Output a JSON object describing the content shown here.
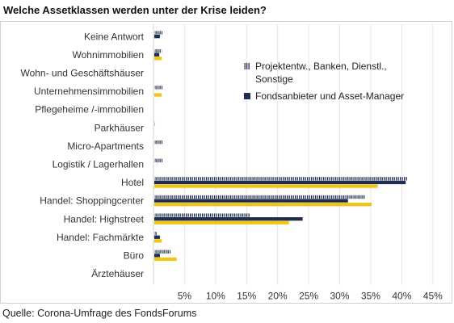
{
  "header": {
    "title": "Welche Assetklassen werden unter der Krise leiden?"
  },
  "footer": {
    "source": "Quelle: Corona-Umfrage des FondsForums"
  },
  "colors": {
    "series_hatched": "#1f2d4f",
    "series_navy": "#1f2d4f",
    "series_gold": "#f2c418",
    "grid": "#e6e6e6"
  },
  "chart_data": {
    "type": "bar",
    "orientation": "horizontal",
    "title": "",
    "xlabel": "",
    "ylabel": "",
    "xlim": [
      0,
      0.475
    ],
    "x_ticks": [
      0.05,
      0.1,
      0.15,
      0.2,
      0.25,
      0.3,
      0.35,
      0.4,
      0.45
    ],
    "x_tick_labels": [
      "5%",
      "10%",
      "15%",
      "20%",
      "25%",
      "30%",
      "35%",
      "40%",
      "45%"
    ],
    "grid": true,
    "legend_position": "top-right",
    "categories": [
      "Keine Antwort",
      "Wohnimmobilien",
      "Wohn- und Geschäftshäuser",
      "Unternehmensimmobilien",
      "Pflegeheime /-immobilien",
      "Parkhäuser",
      "Micro-Apartments",
      "Logistik / Lagerhallen",
      "Hotel",
      "Handel: Shoppingcenter",
      "Handel: Highstreet",
      "Handel: Fachmärkte",
      "Büro",
      "Ärztehäuser"
    ],
    "series": [
      {
        "name": "Projektentw., Banken, Dienstl., Sonstige",
        "style": "hatched",
        "values": [
          0.013,
          0.012,
          0,
          0.013,
          0,
          0.002,
          0.013,
          0.013,
          0.408,
          0.34,
          0.154,
          0.005,
          0.026,
          0
        ]
      },
      {
        "name": "Fondsanbieter und Asset-Manager",
        "style": "solid-navy",
        "values": [
          0.009,
          0.008,
          0,
          0,
          0,
          0,
          0,
          0,
          0.405,
          0.312,
          0.239,
          0.009,
          0.009,
          0
        ]
      },
      {
        "style": "solid-gold",
        "values": [
          0,
          0.012,
          0,
          0.012,
          0,
          0,
          0,
          0,
          0.36,
          0.35,
          0.217,
          0.012,
          0.036,
          0
        ]
      }
    ]
  }
}
